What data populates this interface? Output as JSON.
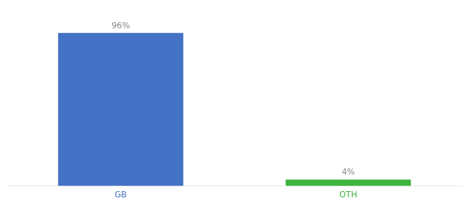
{
  "chart_data": {
    "type": "bar",
    "categories": [
      "GB",
      "OTH"
    ],
    "values": [
      96,
      4
    ],
    "value_labels": [
      "96%",
      "4%"
    ],
    "colors": [
      "#4472c4",
      "#3db53d"
    ],
    "ylim": [
      0,
      108
    ],
    "grid": false,
    "data_labels": true,
    "tick_labels": "x"
  }
}
